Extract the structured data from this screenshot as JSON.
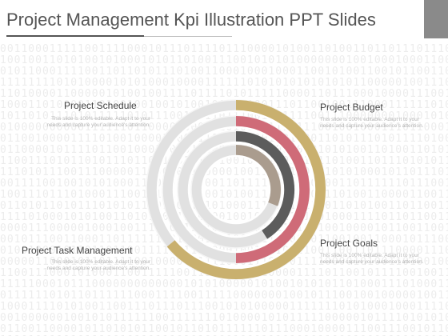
{
  "title": "Project Management Kpi Illustration PPT Slides",
  "items": [
    {
      "label": "Project Schedule",
      "description": "This slide is 100% editable. Adapt it to your needs and capture your audience's attention."
    },
    {
      "label": "Project Budget",
      "description": "This slide is 100% editable. Adapt it to your needs and capture your audience's attention."
    },
    {
      "label": "Project Task Management",
      "description": "This slide is 100% editable. Adapt it to your needs and capture your audience's attention."
    },
    {
      "label": "Project Goals",
      "description": "This slide is 100% editable. Adapt it to your needs and capture your audience's attention."
    }
  ],
  "rings": [
    {
      "name": "outer",
      "fraction": 0.64,
      "color": "#c9b06e",
      "track": "#e1e1e1"
    },
    {
      "name": "second",
      "fraction": 0.5,
      "color": "#cf6b78",
      "track": "#e1e1e1"
    },
    {
      "name": "third",
      "fraction": 0.41,
      "color": "#5c5c5c",
      "track": "#e1e1e1"
    },
    {
      "name": "inner",
      "fraction": 0.31,
      "color": "#aa9c8e",
      "track": "#e1e1e1"
    }
  ],
  "colors": {
    "title": "#555555",
    "label": "#444444",
    "description": "#b3b3b3"
  }
}
